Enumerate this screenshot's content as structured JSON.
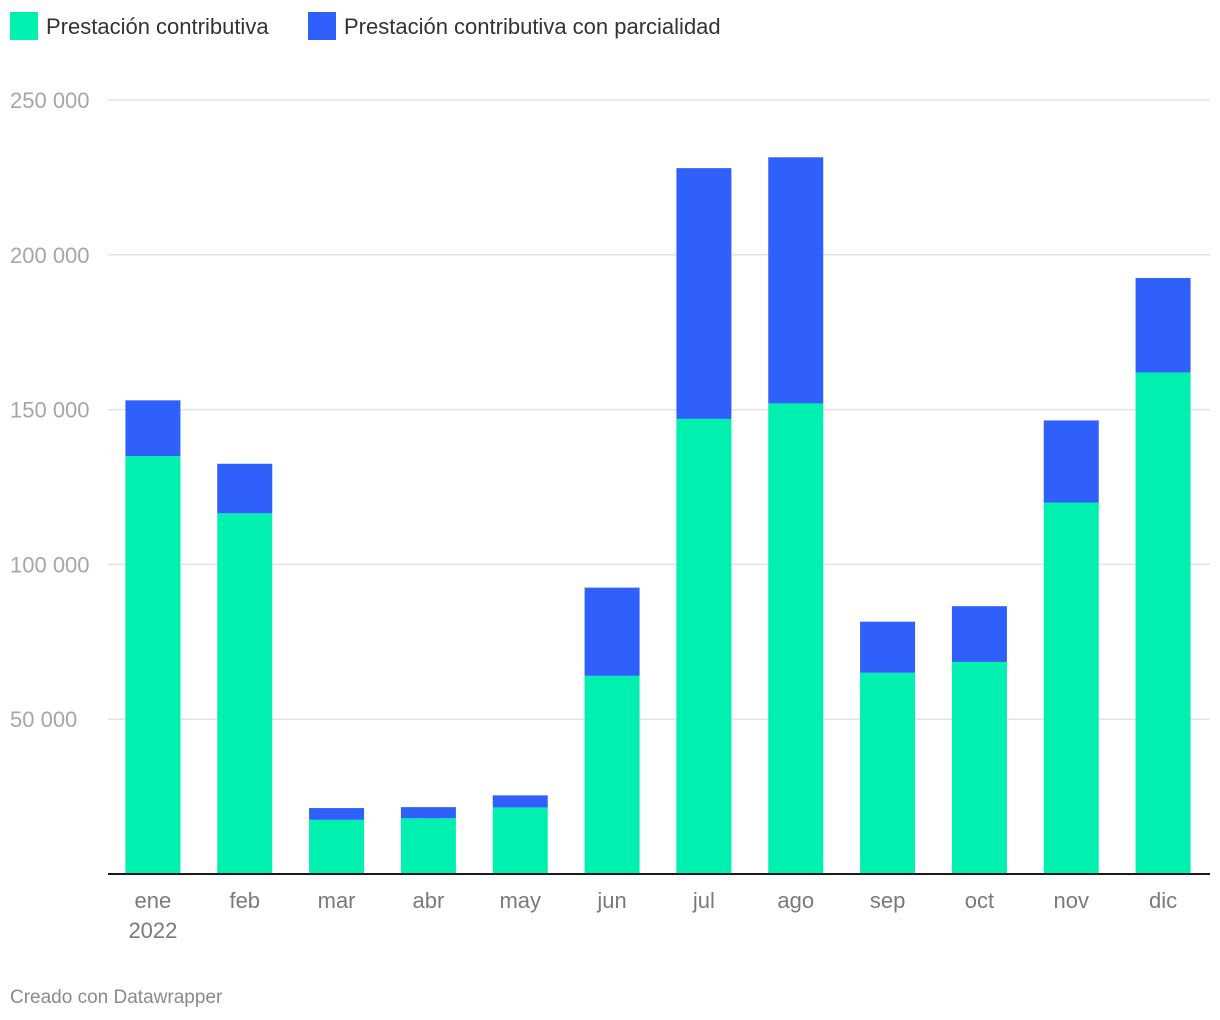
{
  "chart_data": {
    "type": "bar",
    "stacked": true,
    "categories": [
      "ene",
      "feb",
      "mar",
      "abr",
      "may",
      "jun",
      "jul",
      "ago",
      "sep",
      "oct",
      "nov",
      "dic"
    ],
    "category_sublabels": [
      "2022",
      "",
      "",
      "",
      "",
      "",
      "",
      "",
      "",
      "",
      "",
      ""
    ],
    "series": [
      {
        "name": "Prestación contributiva",
        "color": "#00f0b0",
        "values": [
          135000,
          116500,
          17500,
          18000,
          21500,
          64000,
          147000,
          152000,
          65000,
          68500,
          120000,
          162000
        ]
      },
      {
        "name": "Prestación contributiva con parcialidad",
        "color": "#3060fb",
        "values": [
          18000,
          16000,
          3800,
          3600,
          3900,
          28500,
          81000,
          79500,
          16500,
          18000,
          26500,
          30500
        ]
      }
    ],
    "ylim": [
      0,
      250000
    ],
    "yticks": [
      50000,
      100000,
      150000,
      200000,
      250000
    ],
    "ytick_labels": [
      "50 000",
      "100 000",
      "150 000",
      "200 000",
      "250 000"
    ],
    "grid": true,
    "legend_position": "top-left",
    "xlabel": "",
    "ylabel": "",
    "title": ""
  },
  "footer": {
    "credit": "Creado con Datawrapper"
  }
}
